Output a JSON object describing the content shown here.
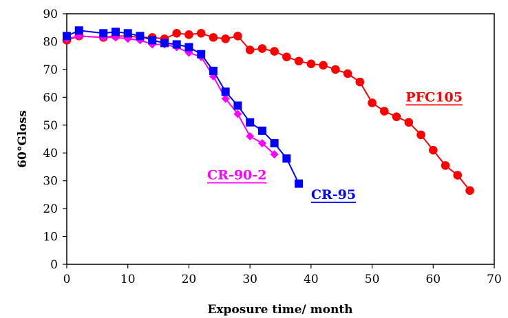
{
  "chart_data": {
    "type": "line",
    "xlabel": "Exposure time/ month",
    "ylabel": "60°Gloss",
    "xlim": [
      0,
      70
    ],
    "ylim": [
      0,
      90
    ],
    "xticks": [
      "0",
      "10",
      "20",
      "30",
      "40",
      "50",
      "60",
      "70"
    ],
    "yticks": [
      "0",
      "10",
      "20",
      "30",
      "40",
      "50",
      "60",
      "70",
      "80",
      "90"
    ],
    "grid": false,
    "series": [
      {
        "name": "PFC105",
        "color": "#ff0000",
        "marker": "circle",
        "points": [
          [
            0,
            80.5
          ],
          [
            2,
            82
          ],
          [
            6,
            81.5
          ],
          [
            8,
            82
          ],
          [
            10,
            82
          ],
          [
            12,
            81.5
          ],
          [
            14,
            81.5
          ],
          [
            16,
            81
          ],
          [
            18,
            83
          ],
          [
            20,
            82.5
          ],
          [
            22,
            83
          ],
          [
            24,
            81.5
          ],
          [
            26,
            81
          ],
          [
            28,
            82
          ],
          [
            30,
            77
          ],
          [
            32,
            77.5
          ],
          [
            34,
            76.5
          ],
          [
            36,
            74.5
          ],
          [
            38,
            73
          ],
          [
            40,
            72
          ],
          [
            42,
            71.5
          ],
          [
            44,
            70
          ],
          [
            46,
            68.5
          ],
          [
            48,
            65.5
          ],
          [
            50,
            58
          ],
          [
            52,
            55
          ],
          [
            54,
            53
          ],
          [
            56,
            51
          ],
          [
            58,
            46.5
          ],
          [
            60,
            41
          ],
          [
            62,
            35.5
          ],
          [
            64,
            32
          ],
          [
            66,
            26.5
          ]
        ]
      },
      {
        "name": "CR-90-2",
        "color": "#ff00ff",
        "marker": "diamond",
        "points": [
          [
            0,
            81
          ],
          [
            2,
            82
          ],
          [
            6,
            81.5
          ],
          [
            8,
            81.5
          ],
          [
            10,
            81
          ],
          [
            12,
            80.5
          ],
          [
            14,
            79
          ],
          [
            16,
            79
          ],
          [
            18,
            78
          ],
          [
            20,
            76
          ],
          [
            22,
            74.5
          ],
          [
            24,
            67.5
          ],
          [
            26,
            59.5
          ],
          [
            28,
            54
          ],
          [
            30,
            46
          ],
          [
            32,
            43.5
          ],
          [
            34,
            39.5
          ]
        ]
      },
      {
        "name": "CR-95",
        "color": "#0000ff",
        "marker": "square",
        "points": [
          [
            0,
            82
          ],
          [
            2,
            84
          ],
          [
            6,
            83
          ],
          [
            8,
            83.5
          ],
          [
            10,
            83
          ],
          [
            12,
            82
          ],
          [
            14,
            80.5
          ],
          [
            16,
            79.5
          ],
          [
            18,
            79
          ],
          [
            20,
            78
          ],
          [
            22,
            75.5
          ],
          [
            24,
            69.5
          ],
          [
            26,
            62
          ],
          [
            28,
            57
          ],
          [
            30,
            51
          ],
          [
            32,
            48
          ],
          [
            34,
            43.5
          ],
          [
            36,
            38
          ],
          [
            38,
            29
          ]
        ]
      }
    ],
    "labels": [
      {
        "series": "PFC105",
        "text": "PFC105",
        "x": 55.5,
        "y": 58.5
      },
      {
        "series": "CR-90-2",
        "text": "CR-90-2",
        "x": 23,
        "y": 30.5
      },
      {
        "series": "CR-95",
        "text": "CR-95",
        "x": 40,
        "y": 23.5
      }
    ]
  }
}
